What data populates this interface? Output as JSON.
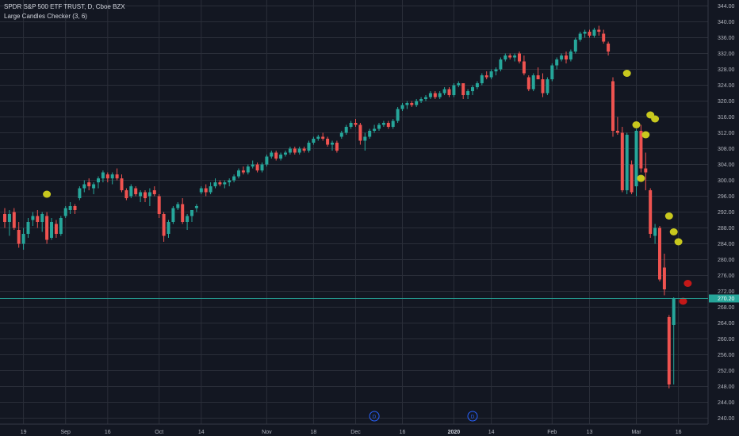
{
  "legend": {
    "symbol_line": "SPDR S&P 500 ETF TRUST, D, Cboe BZX",
    "indicator_line": "Large Candles Checker (3, 6)"
  },
  "colors": {
    "background": "#131722",
    "grid": "#2a2e39",
    "up": "#26a69a",
    "down": "#ef5350",
    "marker_yellow": "#c8c81e",
    "marker_red": "#c41818",
    "event": "#2962ff"
  },
  "last_price": {
    "label": "270.20",
    "value": 270.2
  },
  "events": [
    {
      "label": "D",
      "x_index": 100
    },
    {
      "label": "D",
      "x_index": 79
    }
  ],
  "chart_data": {
    "type": "candlestick",
    "title": "SPDR S&P 500 ETF TRUST, D, Cboe BZX",
    "indicator": "Large Candles Checker (3, 6)",
    "ylim": [
      238.5,
      345.5
    ],
    "y_ticks": [
      240,
      244,
      248,
      252,
      256,
      260,
      264,
      268,
      272,
      276,
      280,
      284,
      288,
      292,
      296,
      300,
      304,
      308,
      312,
      316,
      320,
      324,
      328,
      332,
      336,
      340,
      344
    ],
    "x_ticks": [
      {
        "label": "19",
        "index": 4,
        "bold": false
      },
      {
        "label": "Sep",
        "index": 13,
        "bold": false
      },
      {
        "label": "16",
        "index": 22,
        "bold": false
      },
      {
        "label": "Oct",
        "index": 33,
        "bold": false
      },
      {
        "label": "14",
        "index": 42,
        "bold": false
      },
      {
        "label": "Nov",
        "index": 56,
        "bold": false
      },
      {
        "label": "18",
        "index": 66,
        "bold": false
      },
      {
        "label": "Dec",
        "index": 75,
        "bold": false
      },
      {
        "label": "16",
        "index": 85,
        "bold": false
      },
      {
        "label": "2020",
        "index": 96,
        "bold": true
      },
      {
        "label": "14",
        "index": 104,
        "bold": false
      },
      {
        "label": "Feb",
        "index": 117,
        "bold": false
      },
      {
        "label": "13",
        "index": 125,
        "bold": false
      },
      {
        "label": "Mar",
        "index": 135,
        "bold": false
      },
      {
        "label": "16",
        "index": 144,
        "bold": false
      }
    ],
    "candles": [
      {
        "o": 291.5,
        "h": 293.0,
        "l": 288.0,
        "c": 289.5
      },
      {
        "o": 289.5,
        "h": 292.5,
        "l": 286.0,
        "c": 291.5
      },
      {
        "o": 292.0,
        "h": 293.0,
        "l": 287.5,
        "c": 288.0
      },
      {
        "o": 287.5,
        "h": 289.5,
        "l": 283.0,
        "c": 284.0
      },
      {
        "o": 284.0,
        "h": 288.0,
        "l": 282.5,
        "c": 286.5
      },
      {
        "o": 286.5,
        "h": 290.5,
        "l": 285.5,
        "c": 289.5
      },
      {
        "o": 290.0,
        "h": 292.0,
        "l": 288.5,
        "c": 291.0
      },
      {
        "o": 291.0,
        "h": 292.5,
        "l": 288.0,
        "c": 289.5
      },
      {
        "o": 289.5,
        "h": 292.0,
        "l": 287.0,
        "c": 291.5
      },
      {
        "o": 291.0,
        "h": 292.0,
        "l": 284.0,
        "c": 285.0
      },
      {
        "o": 285.5,
        "h": 290.5,
        "l": 285.0,
        "c": 289.5
      },
      {
        "o": 289.0,
        "h": 290.0,
        "l": 285.5,
        "c": 286.5
      },
      {
        "o": 286.5,
        "h": 291.0,
        "l": 286.0,
        "c": 290.5
      },
      {
        "o": 291.0,
        "h": 293.5,
        "l": 290.5,
        "c": 293.0
      },
      {
        "o": 292.5,
        "h": 294.5,
        "l": 291.5,
        "c": 293.5
      },
      {
        "o": 293.5,
        "h": 294.0,
        "l": 291.5,
        "c": 292.5
      },
      {
        "o": 295.5,
        "h": 298.5,
        "l": 295.0,
        "c": 298.0
      },
      {
        "o": 298.0,
        "h": 300.0,
        "l": 297.0,
        "c": 299.0
      },
      {
        "o": 299.5,
        "h": 300.5,
        "l": 297.5,
        "c": 298.5
      },
      {
        "o": 298.0,
        "h": 299.5,
        "l": 296.5,
        "c": 299.0
      },
      {
        "o": 299.5,
        "h": 301.0,
        "l": 298.0,
        "c": 300.5
      },
      {
        "o": 300.5,
        "h": 302.5,
        "l": 299.5,
        "c": 302.0
      },
      {
        "o": 301.5,
        "h": 302.0,
        "l": 299.5,
        "c": 300.5
      },
      {
        "o": 300.5,
        "h": 302.0,
        "l": 299.0,
        "c": 301.5
      },
      {
        "o": 301.5,
        "h": 303.0,
        "l": 300.0,
        "c": 300.5
      },
      {
        "o": 300.5,
        "h": 301.5,
        "l": 297.0,
        "c": 297.5
      },
      {
        "o": 297.5,
        "h": 298.0,
        "l": 295.0,
        "c": 295.5
      },
      {
        "o": 296.0,
        "h": 299.0,
        "l": 295.5,
        "c": 298.5
      },
      {
        "o": 298.0,
        "h": 298.5,
        "l": 296.0,
        "c": 296.5
      },
      {
        "o": 296.0,
        "h": 297.5,
        "l": 294.5,
        "c": 297.0
      },
      {
        "o": 297.0,
        "h": 297.5,
        "l": 294.5,
        "c": 295.5
      },
      {
        "o": 296.0,
        "h": 298.0,
        "l": 293.5,
        "c": 297.0
      },
      {
        "o": 297.5,
        "h": 298.5,
        "l": 296.0,
        "c": 296.5
      },
      {
        "o": 296.0,
        "h": 296.5,
        "l": 290.5,
        "c": 291.5
      },
      {
        "o": 291.5,
        "h": 292.0,
        "l": 284.5,
        "c": 286.0
      },
      {
        "o": 286.5,
        "h": 290.0,
        "l": 285.5,
        "c": 289.5
      },
      {
        "o": 289.5,
        "h": 293.5,
        "l": 289.0,
        "c": 293.0
      },
      {
        "o": 293.0,
        "h": 294.5,
        "l": 292.5,
        "c": 294.0
      },
      {
        "o": 294.0,
        "h": 295.5,
        "l": 289.0,
        "c": 289.5
      },
      {
        "o": 289.5,
        "h": 291.5,
        "l": 287.5,
        "c": 291.0
      },
      {
        "o": 291.0,
        "h": 292.5,
        "l": 289.5,
        "c": 292.5
      },
      {
        "o": 293.0,
        "h": 294.0,
        "l": 292.0,
        "c": 293.5
      },
      {
        "o": 297.0,
        "h": 298.5,
        "l": 296.5,
        "c": 298.0
      },
      {
        "o": 298.0,
        "h": 299.0,
        "l": 296.0,
        "c": 297.0
      },
      {
        "o": 297.0,
        "h": 299.5,
        "l": 296.5,
        "c": 298.5
      },
      {
        "o": 298.5,
        "h": 300.5,
        "l": 298.0,
        "c": 299.5
      },
      {
        "o": 299.5,
        "h": 300.0,
        "l": 298.5,
        "c": 299.0
      },
      {
        "o": 299.0,
        "h": 300.0,
        "l": 298.0,
        "c": 299.5
      },
      {
        "o": 299.5,
        "h": 300.5,
        "l": 298.5,
        "c": 300.0
      },
      {
        "o": 300.0,
        "h": 301.5,
        "l": 299.5,
        "c": 301.0
      },
      {
        "o": 301.0,
        "h": 303.0,
        "l": 300.5,
        "c": 302.5
      },
      {
        "o": 302.5,
        "h": 303.5,
        "l": 301.5,
        "c": 302.0
      },
      {
        "o": 302.0,
        "h": 304.0,
        "l": 301.5,
        "c": 303.5
      },
      {
        "o": 303.5,
        "h": 305.0,
        "l": 303.0,
        "c": 304.0
      },
      {
        "o": 304.0,
        "h": 304.5,
        "l": 302.0,
        "c": 302.5
      },
      {
        "o": 302.5,
        "h": 304.5,
        "l": 302.0,
        "c": 304.0
      },
      {
        "o": 304.0,
        "h": 306.5,
        "l": 303.5,
        "c": 306.0
      },
      {
        "o": 306.0,
        "h": 307.5,
        "l": 305.5,
        "c": 307.0
      },
      {
        "o": 307.0,
        "h": 307.5,
        "l": 305.0,
        "c": 305.5
      },
      {
        "o": 305.5,
        "h": 307.0,
        "l": 305.0,
        "c": 306.5
      },
      {
        "o": 306.5,
        "h": 307.5,
        "l": 306.0,
        "c": 307.0
      },
      {
        "o": 307.0,
        "h": 308.5,
        "l": 306.5,
        "c": 308.0
      },
      {
        "o": 308.0,
        "h": 308.5,
        "l": 306.5,
        "c": 307.0
      },
      {
        "o": 307.0,
        "h": 308.5,
        "l": 306.5,
        "c": 308.0
      },
      {
        "o": 308.0,
        "h": 308.5,
        "l": 307.0,
        "c": 307.5
      },
      {
        "o": 307.5,
        "h": 310.0,
        "l": 307.0,
        "c": 309.5
      },
      {
        "o": 309.5,
        "h": 311.0,
        "l": 309.0,
        "c": 310.5
      },
      {
        "o": 310.5,
        "h": 311.5,
        "l": 310.0,
        "c": 311.0
      },
      {
        "o": 311.0,
        "h": 312.0,
        "l": 310.0,
        "c": 310.5
      },
      {
        "o": 310.5,
        "h": 311.0,
        "l": 308.5,
        "c": 309.0
      },
      {
        "o": 309.0,
        "h": 310.0,
        "l": 307.5,
        "c": 309.5
      },
      {
        "o": 309.5,
        "h": 310.0,
        "l": 307.0,
        "c": 307.5
      },
      {
        "o": 311.0,
        "h": 312.5,
        "l": 310.5,
        "c": 312.0
      },
      {
        "o": 312.0,
        "h": 314.0,
        "l": 311.5,
        "c": 313.5
      },
      {
        "o": 313.5,
        "h": 315.0,
        "l": 313.0,
        "c": 314.5
      },
      {
        "o": 314.5,
        "h": 315.5,
        "l": 313.5,
        "c": 314.0
      },
      {
        "o": 314.0,
        "h": 314.5,
        "l": 309.0,
        "c": 310.0
      },
      {
        "o": 310.0,
        "h": 312.0,
        "l": 307.5,
        "c": 311.0
      },
      {
        "o": 311.0,
        "h": 313.0,
        "l": 310.5,
        "c": 312.5
      },
      {
        "o": 312.5,
        "h": 314.0,
        "l": 312.0,
        "c": 313.0
      },
      {
        "o": 313.0,
        "h": 314.5,
        "l": 312.5,
        "c": 314.0
      },
      {
        "o": 314.0,
        "h": 315.0,
        "l": 313.5,
        "c": 314.5
      },
      {
        "o": 314.5,
        "h": 315.0,
        "l": 313.0,
        "c": 313.5
      },
      {
        "o": 313.5,
        "h": 315.5,
        "l": 313.0,
        "c": 315.0
      },
      {
        "o": 315.0,
        "h": 318.5,
        "l": 314.5,
        "c": 318.0
      },
      {
        "o": 318.0,
        "h": 319.5,
        "l": 317.5,
        "c": 319.0
      },
      {
        "o": 319.0,
        "h": 320.0,
        "l": 318.0,
        "c": 319.5
      },
      {
        "o": 319.5,
        "h": 320.0,
        "l": 318.5,
        "c": 319.0
      },
      {
        "o": 319.0,
        "h": 320.5,
        "l": 318.5,
        "c": 320.0
      },
      {
        "o": 320.0,
        "h": 321.0,
        "l": 319.5,
        "c": 320.5
      },
      {
        "o": 320.5,
        "h": 321.5,
        "l": 320.0,
        "c": 321.0
      },
      {
        "o": 321.0,
        "h": 322.5,
        "l": 320.5,
        "c": 322.0
      },
      {
        "o": 322.0,
        "h": 322.5,
        "l": 320.5,
        "c": 321.0
      },
      {
        "o": 321.0,
        "h": 322.5,
        "l": 320.5,
        "c": 322.0
      },
      {
        "o": 322.0,
        "h": 323.5,
        "l": 321.5,
        "c": 323.0
      },
      {
        "o": 323.0,
        "h": 323.5,
        "l": 321.0,
        "c": 321.5
      },
      {
        "o": 321.5,
        "h": 324.5,
        "l": 321.0,
        "c": 324.0
      },
      {
        "o": 324.0,
        "h": 325.0,
        "l": 323.5,
        "c": 324.5
      },
      {
        "o": 324.5,
        "h": 324.5,
        "l": 320.5,
        "c": 321.5
      },
      {
        "o": 321.5,
        "h": 323.0,
        "l": 320.5,
        "c": 322.5
      },
      {
        "o": 322.5,
        "h": 324.0,
        "l": 321.5,
        "c": 323.5
      },
      {
        "o": 323.5,
        "h": 325.0,
        "l": 323.0,
        "c": 324.5
      },
      {
        "o": 324.5,
        "h": 327.0,
        "l": 324.0,
        "c": 326.5
      },
      {
        "o": 326.5,
        "h": 327.5,
        "l": 325.5,
        "c": 326.0
      },
      {
        "o": 326.0,
        "h": 328.0,
        "l": 325.5,
        "c": 327.5
      },
      {
        "o": 327.5,
        "h": 328.5,
        "l": 326.5,
        "c": 328.0
      },
      {
        "o": 328.0,
        "h": 331.0,
        "l": 327.5,
        "c": 330.5
      },
      {
        "o": 330.5,
        "h": 332.0,
        "l": 330.0,
        "c": 331.5
      },
      {
        "o": 331.5,
        "h": 332.0,
        "l": 330.5,
        "c": 331.0
      },
      {
        "o": 331.0,
        "h": 332.0,
        "l": 330.0,
        "c": 331.5
      },
      {
        "o": 332.0,
        "h": 332.5,
        "l": 329.5,
        "c": 330.0
      },
      {
        "o": 330.0,
        "h": 331.5,
        "l": 326.5,
        "c": 327.0
      },
      {
        "o": 326.0,
        "h": 326.5,
        "l": 322.5,
        "c": 323.0
      },
      {
        "o": 323.0,
        "h": 327.0,
        "l": 322.5,
        "c": 326.5
      },
      {
        "o": 326.5,
        "h": 328.5,
        "l": 325.5,
        "c": 325.5
      },
      {
        "o": 325.5,
        "h": 327.0,
        "l": 321.0,
        "c": 322.0
      },
      {
        "o": 322.0,
        "h": 326.0,
        "l": 321.5,
        "c": 325.5
      },
      {
        "o": 325.5,
        "h": 329.5,
        "l": 325.0,
        "c": 329.0
      },
      {
        "o": 329.0,
        "h": 331.0,
        "l": 328.0,
        "c": 330.5
      },
      {
        "o": 330.5,
        "h": 332.0,
        "l": 330.0,
        "c": 331.5
      },
      {
        "o": 331.5,
        "h": 332.5,
        "l": 329.5,
        "c": 330.5
      },
      {
        "o": 330.5,
        "h": 333.0,
        "l": 330.0,
        "c": 332.5
      },
      {
        "o": 332.5,
        "h": 336.0,
        "l": 332.0,
        "c": 335.5
      },
      {
        "o": 335.5,
        "h": 337.5,
        "l": 335.0,
        "c": 337.0
      },
      {
        "o": 337.0,
        "h": 338.0,
        "l": 336.0,
        "c": 337.5
      },
      {
        "o": 337.5,
        "h": 338.0,
        "l": 336.0,
        "c": 336.5
      },
      {
        "o": 336.5,
        "h": 338.5,
        "l": 336.0,
        "c": 338.0
      },
      {
        "o": 338.0,
        "h": 339.0,
        "l": 336.5,
        "c": 337.5
      },
      {
        "o": 337.0,
        "h": 338.0,
        "l": 334.5,
        "c": 335.0
      },
      {
        "o": 334.5,
        "h": 335.0,
        "l": 331.5,
        "c": 332.5
      },
      {
        "o": 325.0,
        "h": 326.0,
        "l": 311.0,
        "c": 312.5
      },
      {
        "o": 312.5,
        "h": 316.0,
        "l": 311.5,
        "c": 312.0
      },
      {
        "o": 312.0,
        "h": 313.5,
        "l": 297.0,
        "c": 297.5
      },
      {
        "o": 297.5,
        "h": 312.0,
        "l": 296.5,
        "c": 311.5
      },
      {
        "o": 304.0,
        "h": 305.0,
        "l": 296.5,
        "c": 297.0
      },
      {
        "o": 298.5,
        "h": 313.0,
        "l": 296.0,
        "c": 312.5
      },
      {
        "o": 312.5,
        "h": 314.0,
        "l": 302.0,
        "c": 303.0
      },
      {
        "o": 303.0,
        "h": 307.0,
        "l": 297.5,
        "c": 302.0
      },
      {
        "o": 297.5,
        "h": 298.0,
        "l": 285.5,
        "c": 286.5
      },
      {
        "o": 286.0,
        "h": 289.0,
        "l": 284.0,
        "c": 288.0
      },
      {
        "o": 288.0,
        "h": 288.5,
        "l": 274.5,
        "c": 275.0
      },
      {
        "o": 278.0,
        "h": 281.5,
        "l": 271.0,
        "c": 272.5
      },
      {
        "o": 265.5,
        "h": 266.0,
        "l": 247.5,
        "c": 248.5
      },
      {
        "o": 263.5,
        "h": 270.5,
        "l": 248.5,
        "c": 270.2
      }
    ],
    "markers": [
      {
        "index": 9,
        "value": 296.5,
        "color": "yellow"
      },
      {
        "index": 133,
        "value": 327.0,
        "color": "yellow"
      },
      {
        "index": 135,
        "value": 314.0,
        "color": "yellow"
      },
      {
        "index": 136,
        "value": 300.5,
        "color": "yellow"
      },
      {
        "index": 137,
        "value": 311.5,
        "color": "yellow"
      },
      {
        "index": 138,
        "value": 316.5,
        "color": "yellow"
      },
      {
        "index": 139,
        "value": 315.5,
        "color": "yellow"
      },
      {
        "index": 142,
        "value": 291.0,
        "color": "yellow"
      },
      {
        "index": 143,
        "value": 287.0,
        "color": "yellow"
      },
      {
        "index": 144,
        "value": 284.5,
        "color": "yellow"
      },
      {
        "index": 145,
        "value": 269.5,
        "color": "red"
      },
      {
        "index": 146,
        "value": 274.0,
        "color": "red"
      }
    ]
  }
}
